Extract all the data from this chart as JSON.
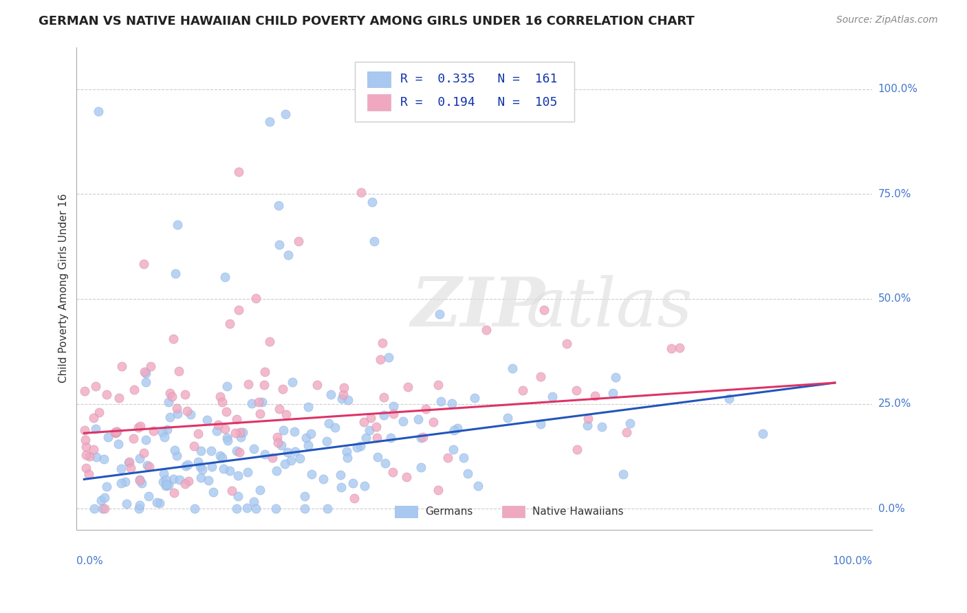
{
  "title": "GERMAN VS NATIVE HAWAIIAN CHILD POVERTY AMONG GIRLS UNDER 16 CORRELATION CHART",
  "source": "Source: ZipAtlas.com",
  "ylabel": "Child Poverty Among Girls Under 16",
  "ytick_values": [
    0.0,
    0.25,
    0.5,
    0.75,
    1.0
  ],
  "ytick_labels": [
    "0.0%",
    "25.0%",
    "50.0%",
    "75.0%",
    "100.0%"
  ],
  "german_R": 0.335,
  "german_N": 161,
  "hawaiian_R": 0.194,
  "hawaiian_N": 105,
  "german_color": "#a8c8f0",
  "hawaiian_color": "#f0a8c0",
  "german_line_color": "#2255bb",
  "hawaiian_line_color": "#dd3366",
  "background_color": "#ffffff",
  "grid_color": "#cccccc",
  "title_fontsize": 13,
  "axis_label_fontsize": 11,
  "source_fontsize": 10
}
